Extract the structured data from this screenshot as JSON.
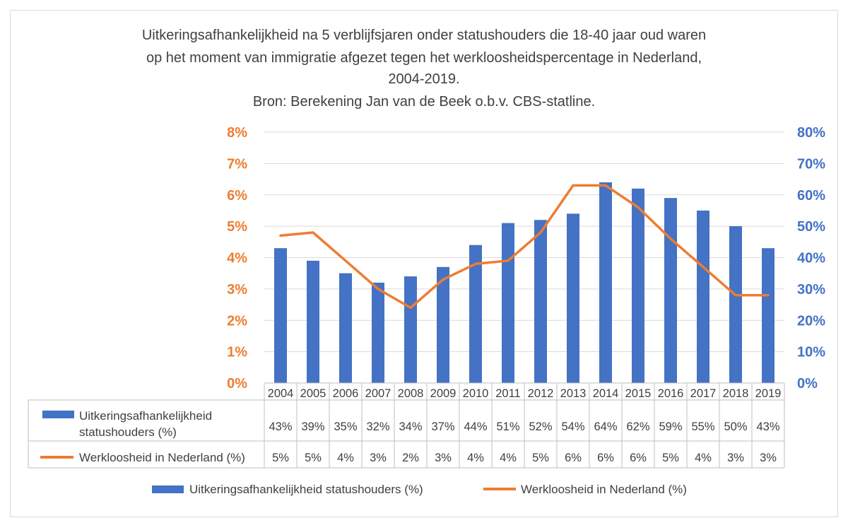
{
  "chart_data": {
    "type": "bar",
    "title_lines": [
      "Uitkeringsafhankelijkheid na 5 verblijfsjaren onder statushouders die 18-40 jaar oud waren",
      "op het moment van immigratie afgezet tegen het werkloosheidspercentage in Nederland,",
      "2004-2019.",
      "Bron: Berekening Jan van de Beek o.b.v. CBS-statline."
    ],
    "categories": [
      "2004",
      "2005",
      "2006",
      "2007",
      "2008",
      "2009",
      "2010",
      "2011",
      "2012",
      "2013",
      "2014",
      "2015",
      "2016",
      "2017",
      "2018",
      "2019"
    ],
    "series": [
      {
        "name": "Uitkeringsafhankelijkheid statushouders (%)",
        "table_label_lines": [
          "Uitkeringsafhankelijkheid",
          "statushouders (%)"
        ],
        "type": "bar",
        "axis": "right",
        "color": "#4472C4",
        "values": [
          43,
          39,
          35,
          32,
          34,
          37,
          44,
          51,
          52,
          54,
          64,
          62,
          59,
          55,
          50,
          43
        ],
        "labels": [
          "43%",
          "39%",
          "35%",
          "32%",
          "34%",
          "37%",
          "44%",
          "51%",
          "52%",
          "54%",
          "64%",
          "62%",
          "59%",
          "55%",
          "50%",
          "43%"
        ]
      },
      {
        "name": "Werkloosheid in Nederland (%)",
        "table_label_lines": [
          "Werkloosheid in Nederland (%)"
        ],
        "type": "line",
        "axis": "left",
        "color": "#ED7D31",
        "values": [
          4.7,
          4.8,
          3.9,
          3.0,
          2.4,
          3.3,
          3.8,
          3.9,
          4.8,
          6.3,
          6.3,
          5.6,
          4.6,
          3.7,
          2.8,
          2.8
        ],
        "labels": [
          "5%",
          "5%",
          "4%",
          "3%",
          "2%",
          "3%",
          "4%",
          "4%",
          "5%",
          "6%",
          "6%",
          "6%",
          "5%",
          "4%",
          "3%",
          "3%"
        ]
      }
    ],
    "y_left": {
      "min": 0,
      "max": 8,
      "step": 1,
      "ticks": [
        "0%",
        "1%",
        "2%",
        "3%",
        "4%",
        "5%",
        "6%",
        "7%",
        "8%"
      ],
      "color": "#ED7D31"
    },
    "y_right": {
      "min": 0,
      "max": 80,
      "step": 10,
      "ticks": [
        "0%",
        "10%",
        "20%",
        "30%",
        "40%",
        "50%",
        "60%",
        "70%",
        "80%"
      ],
      "color": "#4472C4"
    },
    "grid": true,
    "data_table": true,
    "legend_position": "bottom"
  }
}
